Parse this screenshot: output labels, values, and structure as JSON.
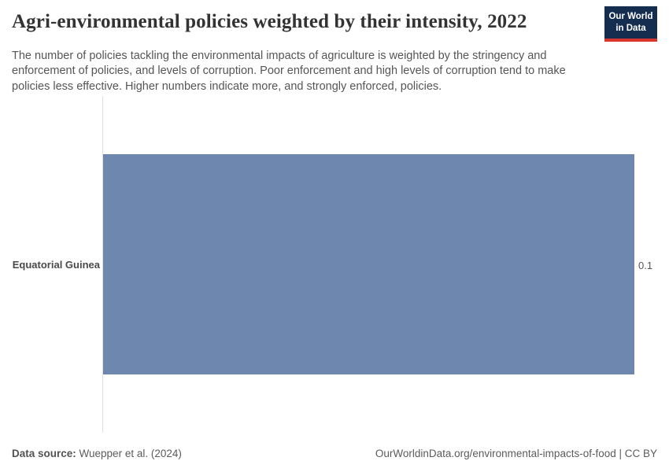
{
  "header": {
    "title": "Agri-environmental policies weighted by their intensity, 2022",
    "subtitle": "The number of policies tackling the environmental impacts of agriculture is weighted by the stringency and enforcement of policies, and levels of corruption. Poor enforcement and high levels of corruption tend to make policies less effective. Higher numbers indicate more, and strongly enforced, policies.",
    "logo": {
      "line1": "Our World",
      "line2": "in Data",
      "bg_color": "#152d4f",
      "stripe_color": "#d8352e"
    }
  },
  "chart_data": {
    "type": "bar",
    "orientation": "horizontal",
    "title": "Agri-environmental policies weighted by their intensity, 2022",
    "categories": [
      "Equatorial Guinea"
    ],
    "values": [
      0.1
    ],
    "value_labels": [
      "0.1"
    ],
    "xlabel": "",
    "ylabel": "",
    "xlim": [
      0,
      0.1
    ],
    "grid": false,
    "legend": "none",
    "bar_color": "#6e87af",
    "axis_line_color": "#dedede"
  },
  "footer": {
    "datasource_label": "Data source:",
    "datasource_value": " Wuepper et al. (2024)",
    "right_text": "OurWorldinData.org/environmental-impacts-of-food | CC BY"
  }
}
